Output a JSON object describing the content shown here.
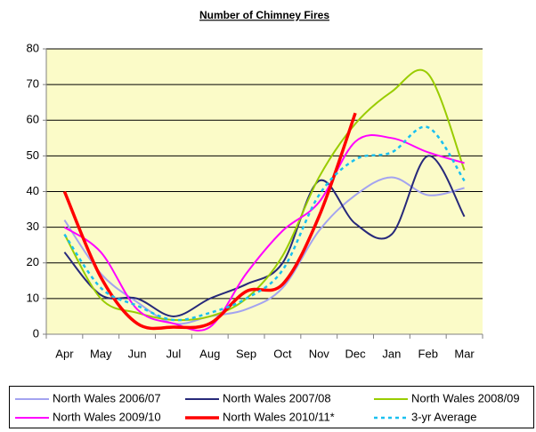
{
  "chart_data": {
    "type": "line",
    "title": "Number of Chimney Fires",
    "categories": [
      "Apr",
      "May",
      "Jun",
      "Jul",
      "Aug",
      "Sep",
      "Oct",
      "Nov",
      "Dec",
      "Jan",
      "Feb",
      "Mar"
    ],
    "ylim": [
      0,
      80
    ],
    "yticks": [
      0,
      10,
      20,
      30,
      40,
      50,
      60,
      70,
      80
    ],
    "grid": true,
    "smooth": true,
    "legend": "bottom",
    "series": [
      {
        "name": "North Wales 2006/07",
        "color": "#a3a3f0",
        "line_width": 2,
        "values": [
          32,
          17,
          9,
          3,
          5,
          7,
          13,
          29,
          39,
          44,
          39,
          41
        ]
      },
      {
        "name": "North Wales 2007/08",
        "color": "#27297a",
        "line_width": 2,
        "values": [
          23,
          11,
          10,
          5,
          10,
          14,
          20,
          43,
          31,
          28,
          50,
          33
        ]
      },
      {
        "name": "North Wales 2008/09",
        "color": "#99cc00",
        "line_width": 2,
        "values": [
          28,
          10,
          6,
          4,
          5,
          10,
          22,
          44,
          59,
          68,
          73,
          46
        ]
      },
      {
        "name": "North Wales 2009/10",
        "color": "#ff00ff",
        "line_width": 2,
        "values": [
          30,
          23,
          7,
          3,
          2,
          17,
          29,
          37,
          54,
          55,
          51,
          48
        ]
      },
      {
        "name": "North Wales 2010/11*",
        "color": "#ff0000",
        "line_width": 3.5,
        "values": [
          40,
          16,
          3,
          2,
          3,
          12,
          14,
          33,
          62,
          null,
          null,
          null
        ]
      },
      {
        "name": "3-yr Average",
        "color": "#19c0f0",
        "line_width": 2.5,
        "dashed": true,
        "values": [
          28,
          13,
          8,
          4,
          6,
          10,
          18,
          39,
          49,
          51,
          58,
          43
        ]
      }
    ]
  }
}
